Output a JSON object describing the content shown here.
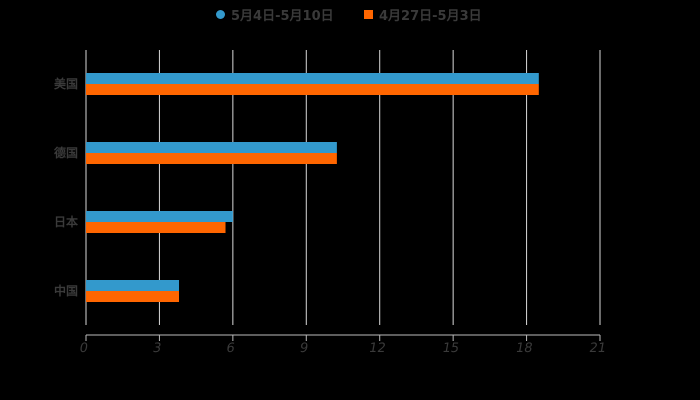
{
  "chart_data": {
    "type": "bar",
    "orientation": "horizontal",
    "title": "",
    "xlabel": "",
    "ylabel": "",
    "categories": [
      "美国",
      "德国",
      "日本",
      "中国"
    ],
    "series": [
      {
        "name": "5月4日-5月10日",
        "color": "#3399CC",
        "values": [
          18.5,
          10.25,
          6.0,
          3.8
        ]
      },
      {
        "name": "4月27日-5月3日",
        "color": "#FF6600",
        "values": [
          18.5,
          10.25,
          5.7,
          3.8
        ]
      }
    ],
    "xlim": [
      0,
      21
    ],
    "xticks": [
      "0",
      "3",
      "6",
      "9",
      "12",
      "15",
      "18",
      "21"
    ],
    "grid": "vertical",
    "legend_position": "top"
  },
  "legend": {
    "items": [
      {
        "label": "5月4日-5月10日",
        "color": "#3399CC",
        "shape": "circle"
      },
      {
        "label": "4月27日-5月3日",
        "color": "#FF6600",
        "shape": "square"
      }
    ]
  }
}
